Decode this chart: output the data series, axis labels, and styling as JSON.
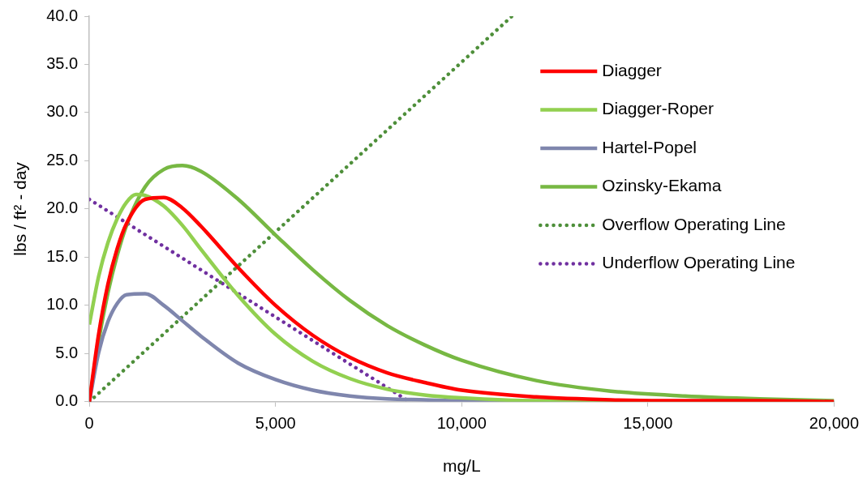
{
  "chart_data": {
    "type": "line",
    "xlabel": "mg/L",
    "ylabel": "lbs / ft² - day",
    "x": [
      0,
      250,
      500,
      750,
      1000,
      1500,
      2000,
      2500,
      3000,
      4000,
      5000,
      6000,
      7000,
      8000,
      9000,
      10000,
      12000,
      14000,
      16000,
      18000,
      20000
    ],
    "xlim": [
      0,
      20000
    ],
    "xticks": [
      {
        "value": 0,
        "label": "0"
      },
      {
        "value": 5000,
        "label": "5,000"
      },
      {
        "value": 10000,
        "label": "10,000"
      },
      {
        "value": 15000,
        "label": "15,000"
      },
      {
        "value": 20000,
        "label": "20,000"
      }
    ],
    "ylim": [
      0,
      40
    ],
    "yticks": [
      {
        "value": 0,
        "label": "0.0"
      },
      {
        "value": 5,
        "label": "5.0"
      },
      {
        "value": 10,
        "label": "10.0"
      },
      {
        "value": 15,
        "label": "15.0"
      },
      {
        "value": 20,
        "label": "20.0"
      },
      {
        "value": 25,
        "label": "25.0"
      },
      {
        "value": 30,
        "label": "30.0"
      },
      {
        "value": 35,
        "label": "35.0"
      },
      {
        "value": 40,
        "label": "40.0"
      }
    ],
    "grid": false,
    "legend": "top right",
    "marker": "none",
    "series": [
      {
        "name": "Diagger",
        "color": "#ff0000",
        "values": [
          0,
          7.0,
          12.2,
          15.9,
          18.5,
          21.0,
          21.2,
          20.1,
          18.2,
          13.9,
          10.0,
          6.9,
          4.6,
          3.0,
          2.0,
          1.2,
          0.5,
          0.2,
          0.1,
          0.1,
          0
        ]
      },
      {
        "name": "Diagger-Roper",
        "color": "#92d050",
        "x": [
          0,
          250,
          500,
          750,
          1000,
          1250,
          1500,
          2000,
          2500,
          3000,
          4000,
          5000,
          6000,
          7000,
          8000,
          9000,
          10000,
          12000,
          20000
        ],
        "values": [
          8,
          13,
          16.5,
          19,
          20.7,
          21.5,
          21.4,
          20.3,
          18.3,
          15.8,
          11.0,
          7.0,
          4.2,
          2.4,
          1.3,
          0.7,
          0.4,
          0.1,
          0
        ]
      },
      {
        "name": "Hartel-Popel",
        "color": "#7f86ad",
        "x": [
          0,
          250,
          500,
          750,
          1000,
          1500,
          2000,
          2500,
          3000,
          4000,
          5000,
          6000,
          7000,
          8000,
          9000,
          10000,
          20000
        ],
        "values": [
          0,
          5.1,
          8.3,
          10.2,
          11.1,
          11.2,
          10.0,
          8.4,
          6.8,
          4.0,
          2.3,
          1.2,
          0.6,
          0.3,
          0.2,
          0.1,
          0
        ]
      },
      {
        "name": "Ozinsky-Ekama",
        "color": "#77b843",
        "values": [
          0,
          6.3,
          11.3,
          15.2,
          18.3,
          22.3,
          24.1,
          24.5,
          23.9,
          21.0,
          17.3,
          13.7,
          10.5,
          7.9,
          5.9,
          4.3,
          2.2,
          1.1,
          0.6,
          0.3,
          0.1
        ]
      },
      {
        "name": "Overflow Operating Line",
        "color": "#4e8f3a",
        "line_style": "dotted",
        "x": [
          0,
          11350
        ],
        "values": [
          0,
          40
        ]
      },
      {
        "name": "Underflow Operating Line",
        "color": "#7030a0",
        "line_style": "dotted",
        "x": [
          0,
          8600
        ],
        "values": [
          21,
          0
        ]
      }
    ]
  }
}
